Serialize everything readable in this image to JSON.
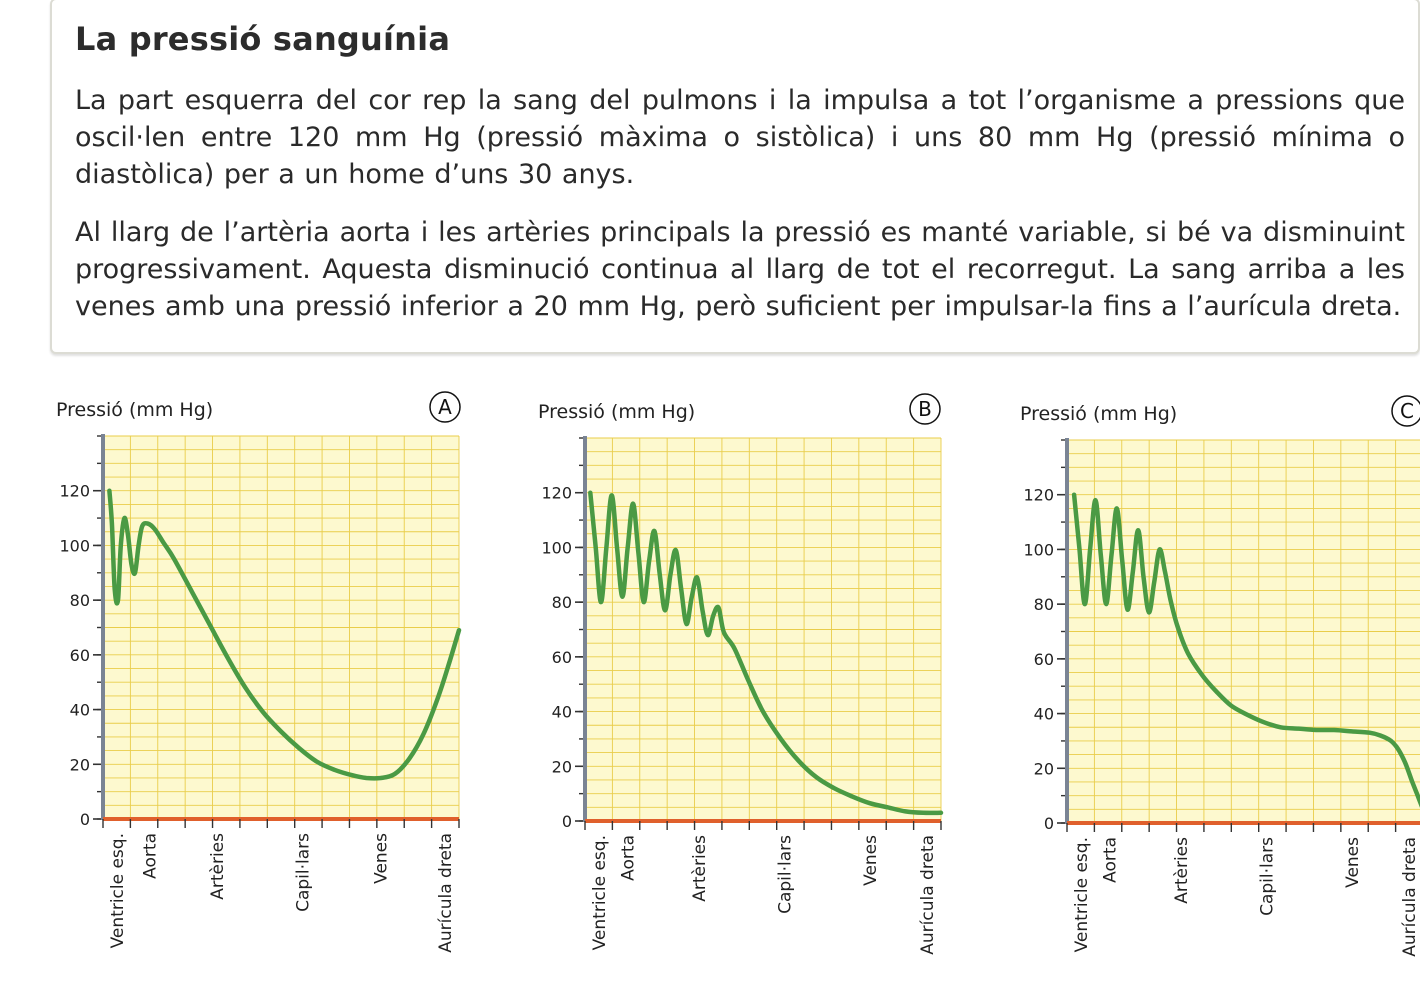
{
  "info": {
    "title": "La pressió sanguínia",
    "paragraph_1": "La part esquerra del cor rep la sang del pulmons i la impulsa a tot l’organisme a pressions que os­cil·len entre 120 mm Hg (pressió màxima o sistòlica) i uns 80 mm Hg (pressió mínima o diastòli­ca) per a un home d’uns 30 anys.",
    "paragraph_2": "Al llarg de l’artèria aorta i les artèries principals la pressió es manté variable, si bé va disminuint progressivament. Aquesta disminució continua al llarg de tot el recorregut. La sang arriba a les ve­nes amb una pressió inferior a 20 mm Hg, però suficient per impulsar-la fins a l’aurícula dreta."
  },
  "colors": {
    "plot_background": "#fdf9cf",
    "grid": "#e9cd4a",
    "curve": "#4a9a44",
    "baseline": "#e0602c",
    "y_axis": "#7a8494",
    "axis_ink": "#333333"
  },
  "chart_data": [
    {
      "type": "line",
      "badge": "A",
      "ylabel": "Pressió (mm Hg)",
      "ylim": [
        0,
        140
      ],
      "yticks": [
        0,
        20,
        40,
        60,
        80,
        100,
        120
      ],
      "xlim": [
        0,
        10
      ],
      "grid": true,
      "categories": [
        {
          "label": "Ventricle esq.",
          "x": 0.4
        },
        {
          "label": "Aorta",
          "x": 1.3
        },
        {
          "label": "Artèries",
          "x": 3.2
        },
        {
          "label": "Capil·lars",
          "x": 5.6
        },
        {
          "label": "Venes",
          "x": 7.8
        },
        {
          "label": "Aurícula dreta",
          "x": 9.6
        }
      ],
      "series": [
        {
          "x": [
            0.18,
            0.25,
            0.33,
            0.42,
            0.5,
            0.6,
            0.7,
            0.8,
            0.9,
            1.0,
            1.1,
            1.25,
            1.45,
            1.7,
            2.0,
            2.5,
            3.0,
            3.5,
            4.0,
            4.5,
            5.0,
            5.5,
            6.0,
            6.5,
            7.0,
            7.4,
            7.8,
            8.2,
            8.6,
            9.0,
            9.4,
            9.7,
            10.0
          ],
          "y": [
            120,
            108,
            84,
            80,
            100,
            110,
            104,
            93,
            90,
            100,
            107,
            108,
            106,
            101,
            95,
            83,
            71,
            59,
            48,
            39,
            32,
            26,
            21,
            18,
            16,
            15,
            15,
            16.5,
            22,
            31,
            44,
            56,
            69
          ]
        }
      ]
    },
    {
      "type": "line",
      "badge": "B",
      "ylabel": "Pressió (mm Hg)",
      "ylim": [
        0,
        140
      ],
      "yticks": [
        0,
        20,
        40,
        60,
        80,
        100,
        120
      ],
      "xlim": [
        0,
        10
      ],
      "grid": true,
      "categories": [
        {
          "label": "Ventricle esq.",
          "x": 0.4
        },
        {
          "label": "Aorta",
          "x": 1.2
        },
        {
          "label": "Artèries",
          "x": 3.2
        },
        {
          "label": "Capil·lars",
          "x": 5.6
        },
        {
          "label": "Venes",
          "x": 8.0
        },
        {
          "label": "Aurícula dreta",
          "x": 9.6
        }
      ],
      "series": [
        {
          "x": [
            0.15,
            0.3,
            0.45,
            0.6,
            0.75,
            0.9,
            1.05,
            1.2,
            1.35,
            1.5,
            1.65,
            1.8,
            1.95,
            2.1,
            2.25,
            2.4,
            2.55,
            2.7,
            2.85,
            3.0,
            3.15,
            3.3,
            3.45,
            3.6,
            3.75,
            3.9,
            4.2,
            4.6,
            5.0,
            5.5,
            6.0,
            6.5,
            7.0,
            7.5,
            8.0,
            8.5,
            9.0,
            9.5,
            10.0
          ],
          "y": [
            120,
            100,
            80,
            100,
            119,
            100,
            82,
            100,
            116,
            98,
            80,
            95,
            106,
            90,
            77,
            90,
            99,
            85,
            72,
            82,
            89,
            77,
            68,
            75,
            78,
            69,
            63,
            51,
            40,
            30,
            22,
            16,
            12,
            9,
            6.5,
            5,
            3.5,
            3,
            3
          ]
        }
      ]
    },
    {
      "type": "line",
      "badge": "C",
      "ylabel": "Pressió (mm Hg)",
      "ylim": [
        0,
        140
      ],
      "yticks": [
        0,
        20,
        40,
        60,
        80,
        100,
        120
      ],
      "xlim": [
        0,
        10
      ],
      "grid": true,
      "categories": [
        {
          "label": "Ventricle esq.",
          "x": 0.4
        },
        {
          "label": "Aorta",
          "x": 1.2
        },
        {
          "label": "Artèries",
          "x": 3.2
        },
        {
          "label": "Capil·lars",
          "x": 5.6
        },
        {
          "label": "Venes",
          "x": 8.0
        },
        {
          "label": "Aurícula dreta",
          "x": 9.6
        }
      ],
      "series": [
        {
          "x": [
            0.2,
            0.35,
            0.5,
            0.65,
            0.8,
            0.95,
            1.1,
            1.25,
            1.4,
            1.55,
            1.7,
            1.85,
            2.0,
            2.15,
            2.3,
            2.45,
            2.6,
            2.75,
            2.9,
            3.1,
            3.4,
            3.8,
            4.2,
            4.6,
            5.0,
            5.5,
            6.0,
            6.5,
            7.0,
            7.5,
            8.0,
            8.5,
            8.8,
            9.1,
            9.3,
            9.5,
            9.7,
            9.85,
            10.0
          ],
          "y": [
            120,
            100,
            80,
            100,
            118,
            98,
            80,
            98,
            115,
            96,
            78,
            92,
            107,
            90,
            77,
            88,
            100,
            92,
            82,
            72,
            62,
            54,
            48,
            43,
            40,
            37,
            35,
            34.5,
            34,
            34,
            33.5,
            33,
            32,
            30,
            27,
            22,
            15,
            10,
            5
          ]
        }
      ]
    }
  ]
}
